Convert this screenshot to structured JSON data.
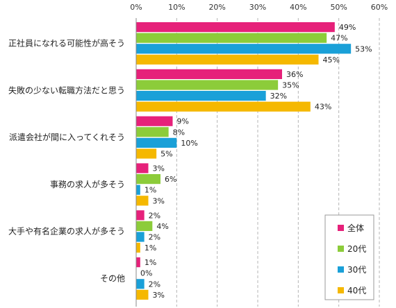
{
  "chart_data": {
    "type": "bar",
    "orientation": "horizontal",
    "categories": [
      "正社員になれる可能性が高そう",
      "失敗の少ない転職方法だと思う",
      "派遣会社が間に入ってくれそう",
      "事務の求人が多そう",
      "大手や有名企業の求人が多そう",
      "その他"
    ],
    "series": [
      {
        "name": "全体",
        "color": "#e6217a",
        "values": [
          49,
          36,
          9,
          3,
          2,
          1
        ]
      },
      {
        "name": "20代",
        "color": "#8ccc3a",
        "values": [
          47,
          35,
          8,
          6,
          4,
          0
        ]
      },
      {
        "name": "30代",
        "color": "#1aa0d8",
        "values": [
          53,
          32,
          10,
          1,
          2,
          2
        ]
      },
      {
        "name": "40代",
        "color": "#f5b800",
        "values": [
          45,
          43,
          5,
          3,
          1,
          3
        ]
      }
    ],
    "xlim": [
      0,
      60
    ],
    "x_ticks": [
      0,
      10,
      20,
      30,
      40,
      50,
      60
    ],
    "tick_suffix": "%",
    "value_suffix": "%",
    "grid": "dashed vertical",
    "legend_position": "bottom-right"
  }
}
